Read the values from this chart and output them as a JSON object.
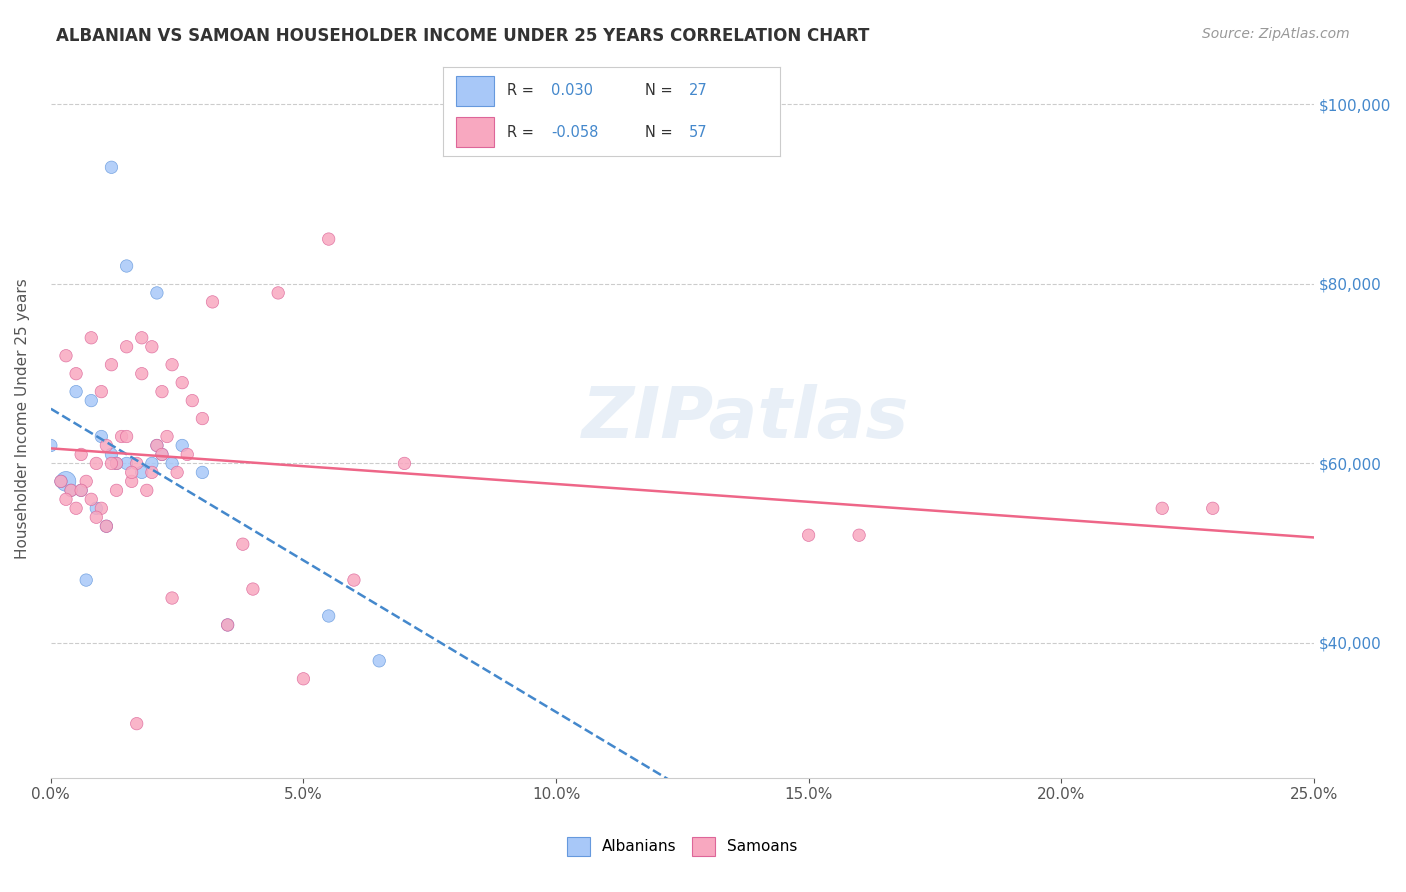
{
  "title": "ALBANIAN VS SAMOAN HOUSEHOLDER INCOME UNDER 25 YEARS CORRELATION CHART",
  "source": "Source: ZipAtlas.com",
  "ylabel": "Householder Income Under 25 years",
  "xlabel_ticks": [
    "0.0%",
    "5.0%",
    "10.0%",
    "15.0%",
    "20.0%",
    "25.0%"
  ],
  "xlabel_vals": [
    0.0,
    5.0,
    10.0,
    15.0,
    20.0,
    25.0
  ],
  "ylabel_ticks": [
    "$40,000",
    "$60,000",
    "$80,000",
    "$100,000"
  ],
  "ylabel_vals": [
    40000,
    60000,
    80000,
    100000
  ],
  "xmin": 0.0,
  "xmax": 25.0,
  "ymin": 25000,
  "ymax": 105000,
  "albanians_R": 0.03,
  "albanians_N": 27,
  "samoans_R": -0.058,
  "samoans_N": 57,
  "albanian_color": "#a8c8f8",
  "albanian_edge": "#6699dd",
  "samoan_color": "#f8a8c0",
  "samoan_edge": "#dd6699",
  "albanian_line_color": "#4488cc",
  "samoan_line_color": "#ee6688",
  "watermark": "ZIPatlas",
  "background_color": "#ffffff",
  "grid_color": "#cccccc",
  "title_color": "#333333",
  "source_color": "#999999",
  "albanians_x": [
    1.2,
    1.5,
    2.1,
    2.1,
    0.5,
    0.8,
    1.0,
    1.2,
    1.5,
    1.8,
    2.0,
    2.2,
    2.4,
    2.6,
    0.3,
    0.6,
    0.9,
    1.1,
    1.3,
    3.0,
    3.5,
    5.5,
    6.5,
    0.0,
    0.2,
    0.4,
    0.7
  ],
  "albanians_y": [
    93000,
    82000,
    79000,
    62000,
    68000,
    67000,
    63000,
    61000,
    60000,
    59000,
    60000,
    61000,
    60000,
    62000,
    58000,
    57000,
    55000,
    53000,
    60000,
    59000,
    42000,
    43000,
    38000,
    62000,
    58000,
    57000,
    47000
  ],
  "albanians_size": [
    80,
    80,
    80,
    80,
    80,
    80,
    80,
    80,
    80,
    80,
    80,
    80,
    80,
    80,
    200,
    80,
    80,
    80,
    80,
    80,
    80,
    80,
    80,
    80,
    80,
    80,
    80
  ],
  "samoans_x": [
    0.3,
    0.5,
    0.8,
    1.0,
    1.2,
    1.5,
    1.8,
    1.8,
    2.0,
    2.2,
    2.4,
    2.6,
    2.8,
    3.0,
    3.2,
    0.6,
    0.9,
    1.1,
    1.3,
    1.6,
    1.7,
    2.1,
    2.3,
    4.5,
    0.4,
    0.7,
    0.8,
    1.0,
    1.2,
    1.4,
    1.5,
    1.6,
    1.9,
    2.0,
    2.2,
    2.5,
    2.7,
    3.5,
    4.0,
    5.0,
    6.0,
    7.0,
    15.0,
    16.0,
    22.0,
    23.0,
    0.2,
    0.3,
    0.5,
    0.6,
    0.9,
    1.1,
    1.3,
    1.7,
    2.4,
    3.8,
    5.5
  ],
  "samoans_y": [
    72000,
    70000,
    74000,
    68000,
    71000,
    73000,
    74000,
    70000,
    73000,
    68000,
    71000,
    69000,
    67000,
    65000,
    78000,
    61000,
    60000,
    62000,
    60000,
    58000,
    60000,
    62000,
    63000,
    79000,
    57000,
    58000,
    56000,
    55000,
    60000,
    63000,
    63000,
    59000,
    57000,
    59000,
    61000,
    59000,
    61000,
    42000,
    46000,
    36000,
    47000,
    60000,
    52000,
    52000,
    55000,
    55000,
    58000,
    56000,
    55000,
    57000,
    54000,
    53000,
    57000,
    31000,
    45000,
    51000,
    85000
  ],
  "samoans_size": [
    80,
    80,
    80,
    80,
    80,
    80,
    80,
    80,
    80,
    80,
    80,
    80,
    80,
    80,
    80,
    80,
    80,
    80,
    80,
    80,
    80,
    80,
    80,
    80,
    80,
    80,
    80,
    80,
    80,
    80,
    80,
    80,
    80,
    80,
    80,
    80,
    80,
    80,
    80,
    80,
    80,
    80,
    80,
    80,
    80,
    80,
    80,
    80,
    80,
    80,
    80,
    80,
    80,
    80,
    80,
    80,
    80
  ]
}
